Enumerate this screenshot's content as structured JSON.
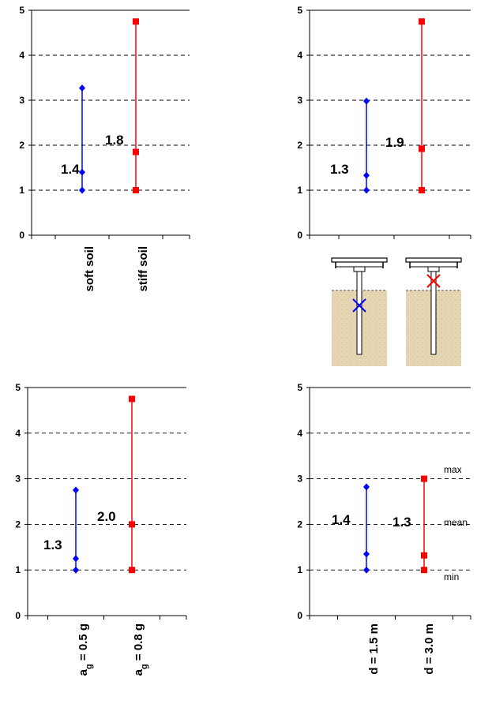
{
  "chart_data": [
    {
      "type": "line",
      "ylim": [
        0,
        5
      ],
      "yticks": [
        "0",
        "1",
        "2",
        "3",
        "4",
        "5"
      ],
      "grid": true,
      "categories": [
        "soft soil",
        "stiff soil"
      ],
      "series": [
        {
          "color": "#0000ff",
          "marker": "diamond",
          "min": 1.0,
          "mean": 1.4,
          "max": 3.27,
          "label": "1.4"
        },
        {
          "color": "#ff0000",
          "marker": "square",
          "min": 1.0,
          "mean": 1.85,
          "max": 4.75,
          "label": "1.8"
        }
      ]
    },
    {
      "type": "line",
      "ylim": [
        0,
        5
      ],
      "yticks": [
        "0",
        "1",
        "2",
        "3",
        "4",
        "5"
      ],
      "grid": true,
      "categories": [],
      "series": [
        {
          "color": "#0000ff",
          "marker": "diamond",
          "min": 1.0,
          "mean": 1.33,
          "max": 2.98,
          "label": "1.3"
        },
        {
          "color": "#ff0000",
          "marker": "square",
          "min": 1.0,
          "mean": 1.92,
          "max": 4.75,
          "label": "1.9"
        }
      ]
    },
    {
      "type": "line",
      "ylim": [
        0,
        5
      ],
      "yticks": [
        "0",
        "1",
        "2",
        "3",
        "4",
        "5"
      ],
      "grid": true,
      "categories": [
        {
          "base": "a",
          "sub": "g",
          "rest": " = 0.5 g"
        },
        {
          "base": "a",
          "sub": "g",
          "rest": " = 0.8 g"
        }
      ],
      "series": [
        {
          "color": "#0000ff",
          "marker": "diamond",
          "min": 1.0,
          "mean": 1.25,
          "max": 2.75,
          "label": "1.3"
        },
        {
          "color": "#ff0000",
          "marker": "square",
          "min": 1.0,
          "mean": 2.0,
          "max": 4.75,
          "label": "2.0"
        }
      ]
    },
    {
      "type": "line",
      "ylim": [
        0,
        5
      ],
      "yticks": [
        "0",
        "1",
        "2",
        "3",
        "4",
        "5"
      ],
      "grid": true,
      "categories": [
        "d = 1.5 m",
        "d = 3.0 m"
      ],
      "series": [
        {
          "color": "#0000ff",
          "marker": "diamond",
          "min": 1.0,
          "mean": 1.35,
          "max": 2.82,
          "label": "1.4"
        },
        {
          "color": "#ff0000",
          "marker": "square",
          "min": 1.0,
          "mean": 1.32,
          "max": 3.0,
          "label": "1.3"
        }
      ],
      "annotations": [
        "max",
        "mean",
        "min"
      ]
    }
  ],
  "illustration": {
    "pile_colors": {
      "blue_marker": "#0000ff",
      "red_marker": "#ff0000",
      "soil": "#e8d8b8"
    }
  }
}
